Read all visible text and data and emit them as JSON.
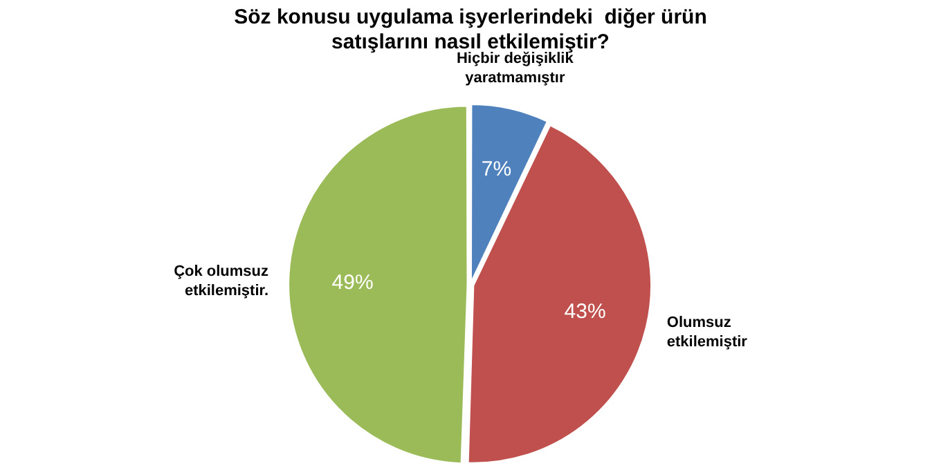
{
  "chart_data": {
    "type": "pie",
    "title": "Söz konusu uygulama işyerlerindeki  diğer ürün satışlarını nasıl etkilemiştir?",
    "categories": [
      "Hiçbir değişiklik yaratmamıştır",
      "Olumsuz etkilemiştir",
      "Çok olumsuz etkilemiştir."
    ],
    "values": [
      7,
      43,
      49
    ],
    "colors": [
      "#4f81bd",
      "#c0504d",
      "#9bbb59"
    ],
    "value_labels": [
      "7%",
      "43%",
      "49%"
    ],
    "legend": false
  }
}
